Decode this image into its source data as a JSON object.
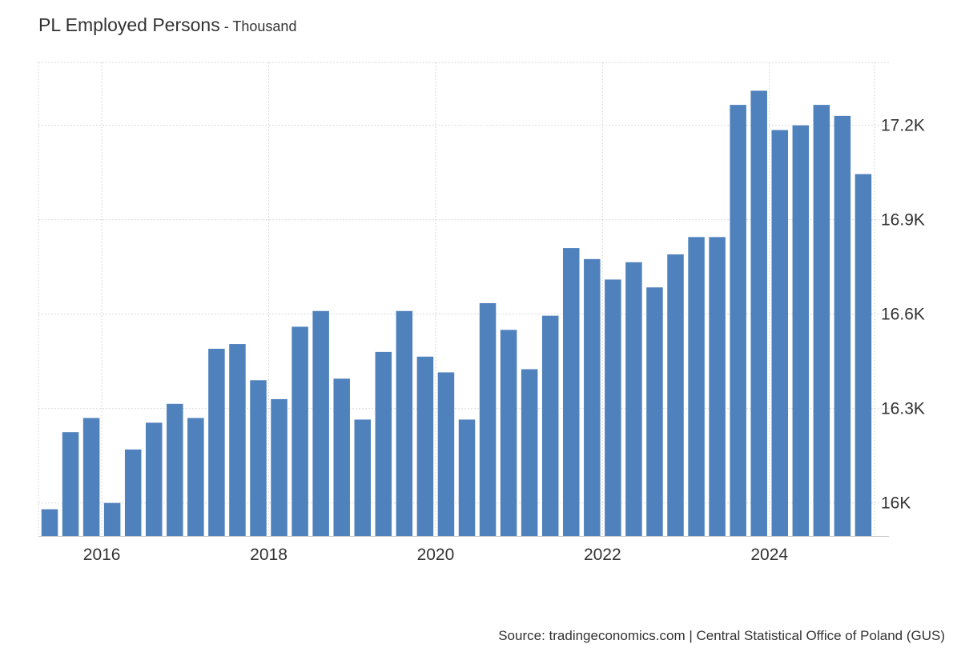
{
  "title": {
    "main": "PL Employed Persons",
    "separator": " - ",
    "unit": "Thousand"
  },
  "source": "Source: tradingeconomics.com | Central Statistical Office of Poland (GUS)",
  "colors": {
    "bar": "#4f81bd",
    "grid": "#d9d9d9",
    "text": "#333333"
  },
  "chart_data": {
    "type": "bar",
    "title": "PL Employed Persons",
    "subtitle": "Thousand",
    "x_ticks": [
      "2016",
      "2018",
      "2020",
      "2022",
      "2024"
    ],
    "y_ticks": [
      "16K",
      "16.3K",
      "16.6K",
      "16.9K",
      "17.2K"
    ],
    "y_tick_values": [
      16000,
      16300,
      16600,
      16900,
      17200
    ],
    "ylim": [
      15895,
      17400
    ],
    "y_axis_side": "right",
    "grid": true,
    "legend": "none",
    "categories": [
      "2015 Q2",
      "2015 Q3",
      "2015 Q4",
      "2016 Q1",
      "2016 Q2",
      "2016 Q3",
      "2016 Q4",
      "2017 Q1",
      "2017 Q2",
      "2017 Q3",
      "2017 Q4",
      "2018 Q1",
      "2018 Q2",
      "2018 Q3",
      "2018 Q4",
      "2019 Q1",
      "2019 Q2",
      "2019 Q3",
      "2019 Q4",
      "2020 Q1",
      "2020 Q2",
      "2020 Q3",
      "2020 Q4",
      "2021 Q1",
      "2021 Q2",
      "2021 Q3",
      "2021 Q4",
      "2022 Q1",
      "2022 Q2",
      "2022 Q3",
      "2022 Q4",
      "2023 Q1",
      "2023 Q2",
      "2023 Q3",
      "2023 Q4",
      "2024 Q1",
      "2024 Q2",
      "2024 Q3",
      "2024 Q4",
      "2025 Q1"
    ],
    "values": [
      15980,
      16225,
      16270,
      16000,
      16170,
      16255,
      16315,
      16270,
      16490,
      16505,
      16390,
      16330,
      16560,
      16610,
      16395,
      16265,
      16480,
      16610,
      16465,
      16415,
      16265,
      16635,
      16550,
      16425,
      16595,
      16810,
      16775,
      16710,
      16765,
      16685,
      16790,
      16845,
      16845,
      17265,
      17310,
      17185,
      17200,
      17265,
      17230,
      17045
    ]
  }
}
